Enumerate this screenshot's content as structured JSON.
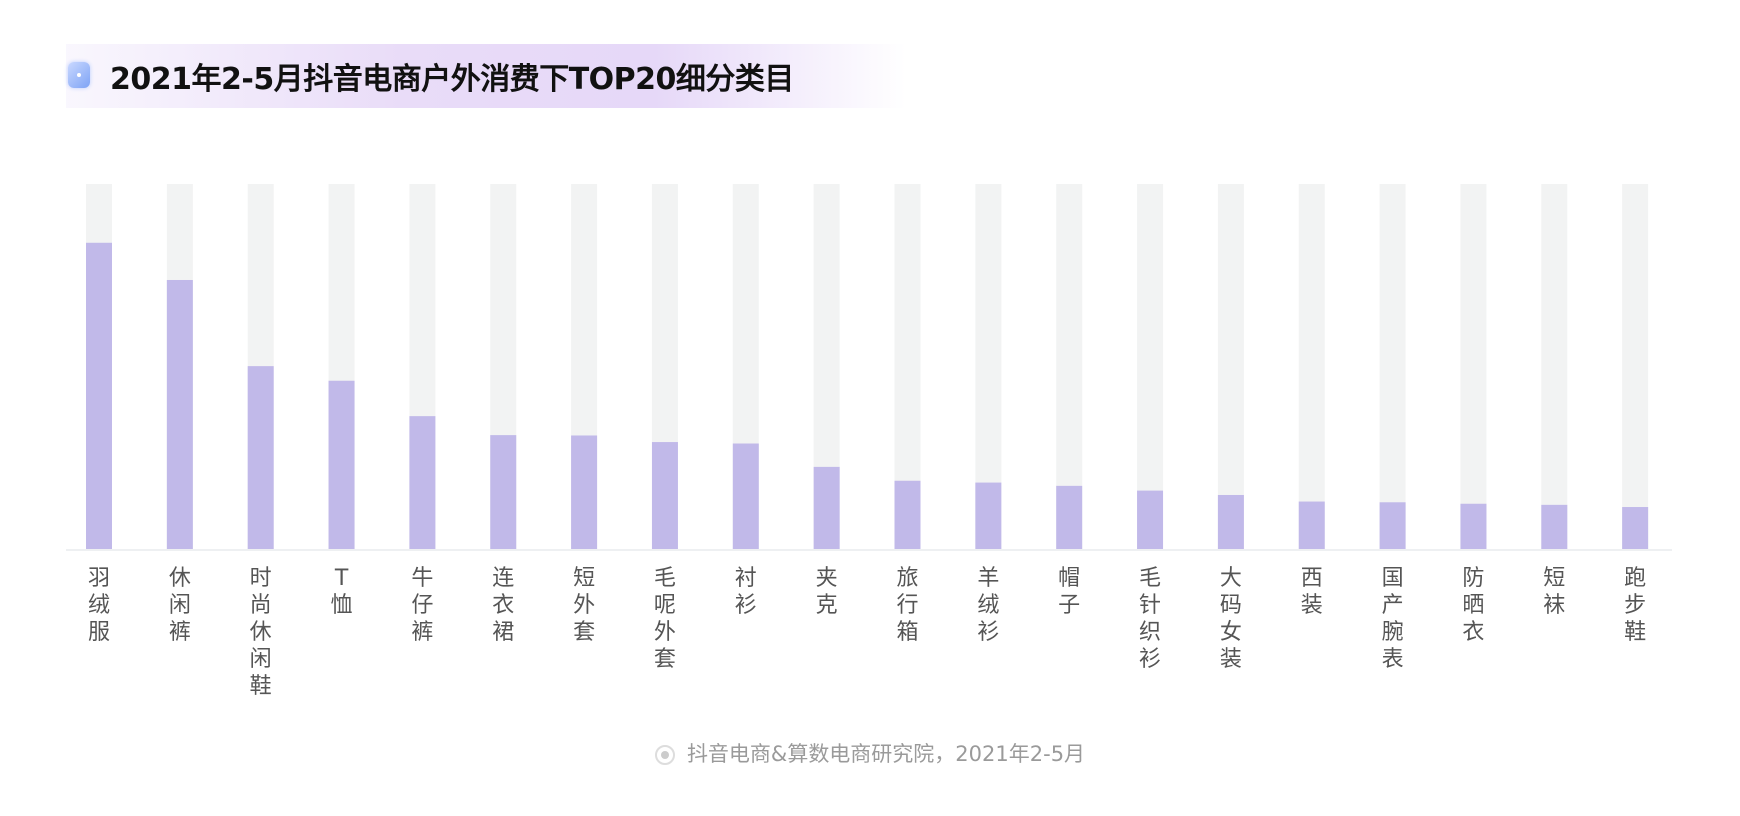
{
  "title": "2021年2-5月抖音电商户外消费下TOP20细分类目",
  "footer": "抖音电商&算数电商研究院，2021年2-5月",
  "colors": {
    "bar": "#c1b9e9",
    "track": "#f2f3f3",
    "title_band": "#e6d8f8"
  },
  "chart_data": {
    "type": "bar",
    "title": "2021年2-5月抖音电商户外消费下TOP20细分类目",
    "xlabel": "",
    "ylabel": "",
    "ylim": [
      0,
      1
    ],
    "grid": false,
    "legend": "none",
    "categories": [
      "羽绒服",
      "休闲裤",
      "时尚休闲鞋",
      "T恤",
      "牛仔裤",
      "连衣裙",
      "短外套",
      "毛呢外套",
      "衬衫",
      "夹克",
      "旅行箱",
      "羊绒衫",
      "帽子",
      "毛针织衫",
      "大码女装",
      "西装",
      "国产腕表",
      "防晒衣",
      "短袜",
      "跑步鞋"
    ],
    "values": [
      0.839,
      0.737,
      0.501,
      0.461,
      0.364,
      0.312,
      0.311,
      0.293,
      0.289,
      0.225,
      0.187,
      0.182,
      0.173,
      0.16,
      0.148,
      0.13,
      0.128,
      0.124,
      0.121,
      0.115
    ]
  }
}
